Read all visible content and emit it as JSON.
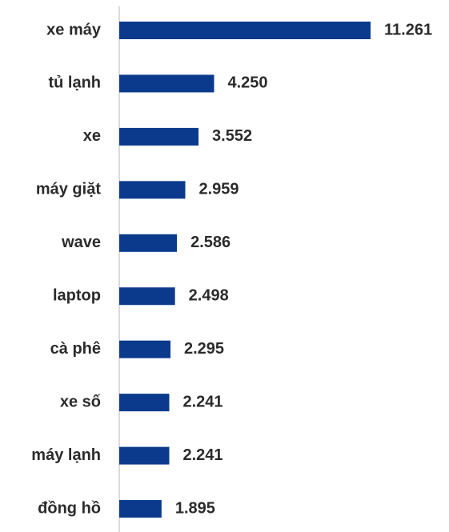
{
  "chart_data": {
    "type": "bar",
    "orientation": "horizontal",
    "color": "#0b3a8c",
    "categories": [
      "xe máy",
      "tủ lạnh",
      "xe",
      "máy giặt",
      "wave",
      "laptop",
      "cà phê",
      "xe số",
      "máy lạnh",
      "đồng hồ"
    ],
    "values": [
      11261,
      4250,
      3552,
      2959,
      2586,
      2498,
      2295,
      2241,
      2241,
      1895
    ],
    "value_labels": [
      "11.261",
      "4.250",
      "3.552",
      "2.959",
      "2.586",
      "2.498",
      "2.295",
      "2.241",
      "2.241",
      "1.895"
    ]
  }
}
